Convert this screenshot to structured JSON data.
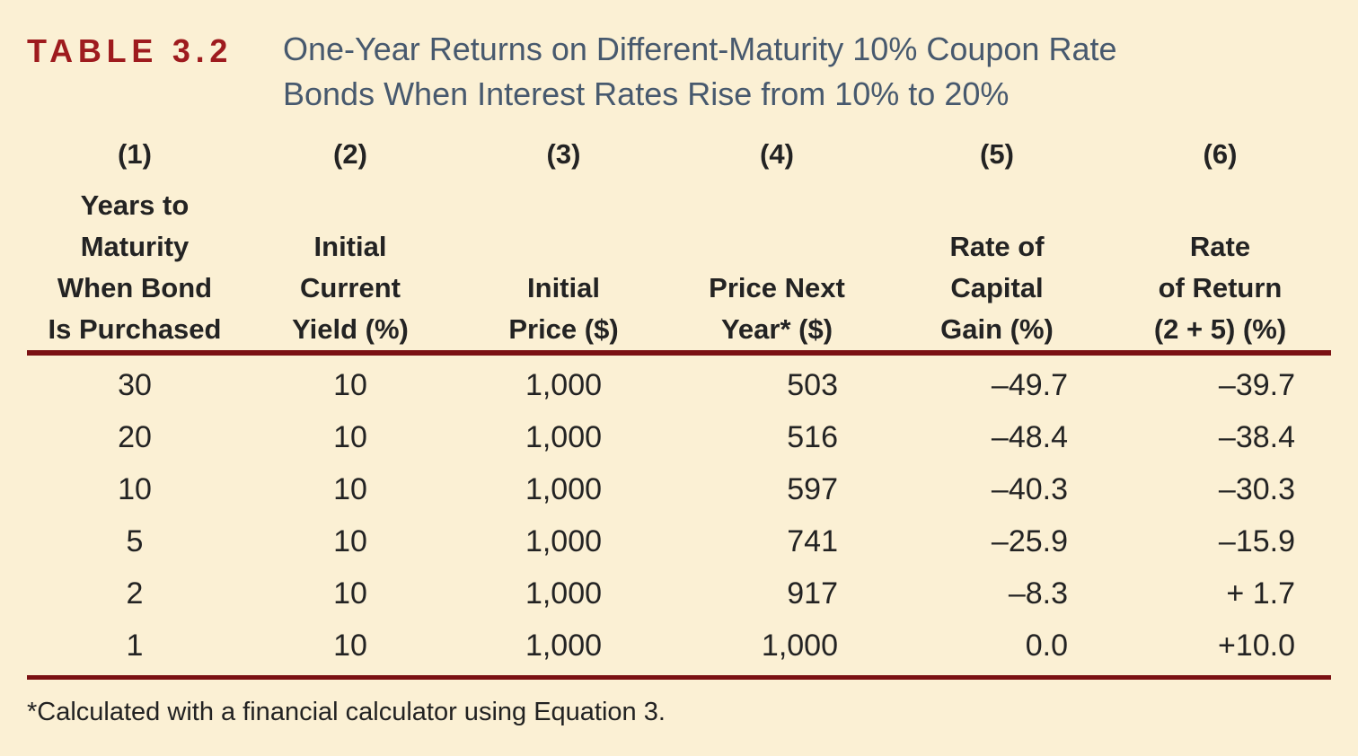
{
  "header": {
    "table_label": "TABLE 3.2",
    "title_line1": "One-Year Returns on Different-Maturity 10% Coupon Rate",
    "title_line2": "Bonds When Interest Rates Rise from 10% to 20%"
  },
  "table": {
    "columns": [
      {
        "num": "(1)",
        "lines": [
          "Years to",
          "Maturity",
          "When Bond",
          "Is Purchased"
        ]
      },
      {
        "num": "(2)",
        "lines": [
          "Initial",
          "Current",
          "Yield (%)"
        ]
      },
      {
        "num": "(3)",
        "lines": [
          "Initial",
          "Price ($)"
        ]
      },
      {
        "num": "(4)",
        "lines": [
          "Price Next",
          "Year* ($)"
        ]
      },
      {
        "num": "(5)",
        "lines": [
          "Rate of",
          "Capital",
          "Gain (%)"
        ]
      },
      {
        "num": "(6)",
        "lines": [
          "Rate",
          "of Return",
          "(2 + 5) (%)"
        ]
      }
    ],
    "rows": [
      [
        "30",
        "10",
        "1,000",
        "503",
        "–49.7",
        "–39.7"
      ],
      [
        "20",
        "10",
        "1,000",
        "516",
        "–48.4",
        "–38.4"
      ],
      [
        "10",
        "10",
        "1,000",
        "597",
        "–40.3",
        "–30.3"
      ],
      [
        "5",
        "10",
        "1,000",
        "741",
        "–25.9",
        "–15.9"
      ],
      [
        "2",
        "10",
        "1,000",
        "917",
        "–8.3",
        "+ 1.7"
      ],
      [
        "1",
        "10",
        "1,000",
        "1,000",
        "0.0",
        "+10.0"
      ]
    ]
  },
  "footnote": "*Calculated with a financial calculator using Equation 3.",
  "colors": {
    "background_cream": "#fbf0d4",
    "table_label_red": "#9e1b1e",
    "rule_maroon": "#7b1113",
    "title_slate_blue": "#47596e",
    "text_black": "#232323"
  }
}
